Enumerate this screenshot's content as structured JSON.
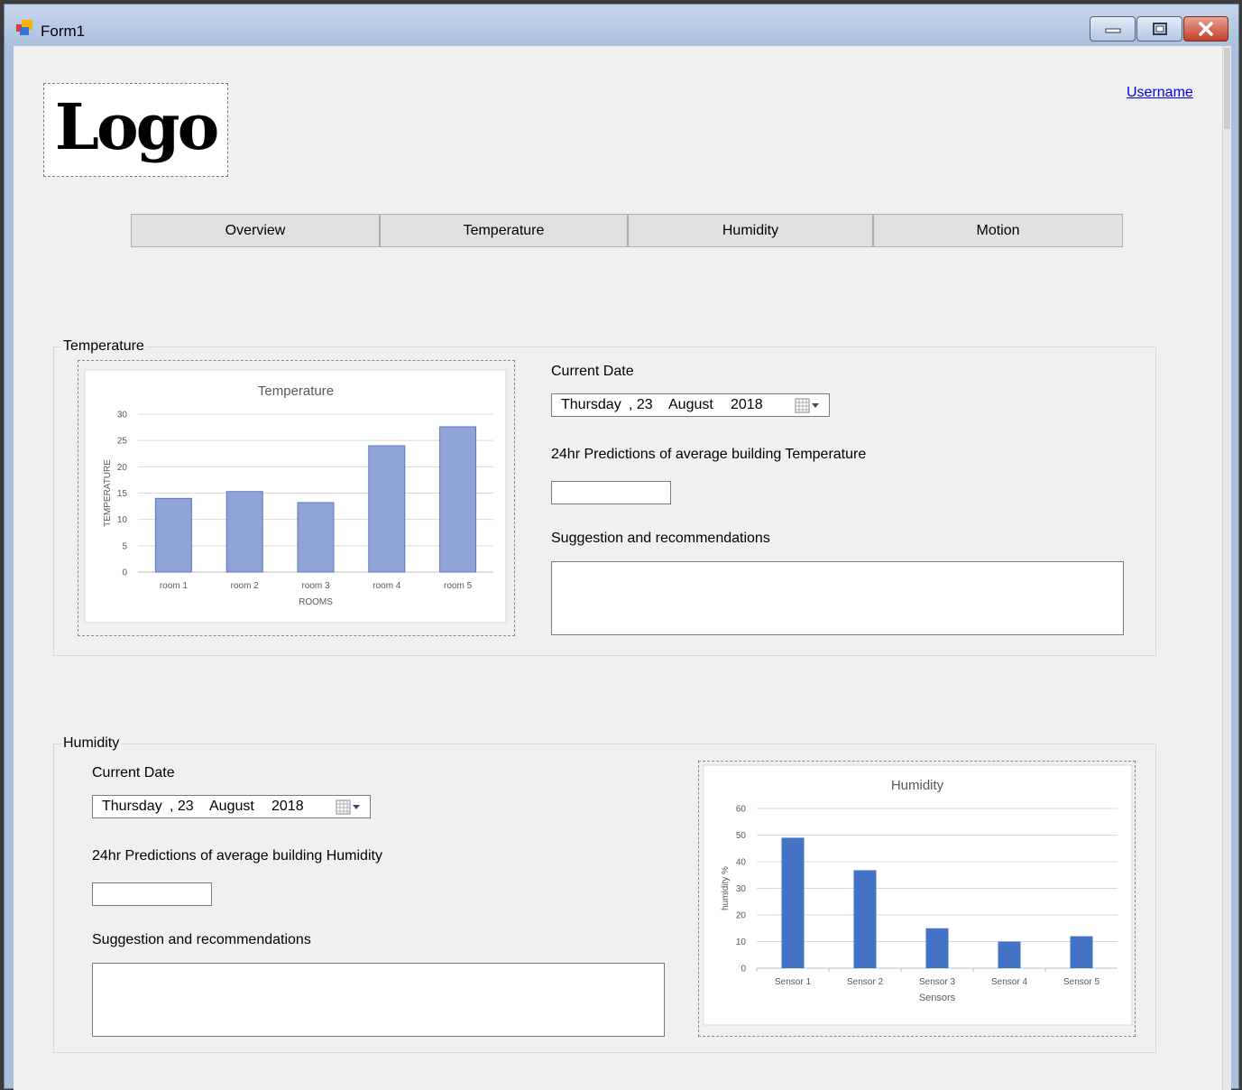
{
  "window": {
    "title": "Form1"
  },
  "header": {
    "logo_text": "Logo",
    "username": "Username"
  },
  "tabs": [
    {
      "label": "Overview"
    },
    {
      "label": "Temperature"
    },
    {
      "label": "Humidity"
    },
    {
      "label": "Motion"
    }
  ],
  "temperature": {
    "group_title": "Temperature",
    "current_date_label": "Current Date",
    "date": {
      "weekday": "Thursday",
      "day": ", 23",
      "month": "August",
      "year": "2018"
    },
    "prediction_label": "24hr Predictions of average building Temperature",
    "prediction_value": "",
    "suggestion_label": "Suggestion and recommendations",
    "suggestion_value": ""
  },
  "humidity": {
    "group_title": "Humidity",
    "current_date_label": "Current Date",
    "date": {
      "weekday": "Thursday",
      "day": ", 23",
      "month": "August",
      "year": "2018"
    },
    "prediction_label": "24hr Predictions of average building Humidity",
    "prediction_value": "",
    "suggestion_label": "Suggestion and recommendations",
    "suggestion_value": ""
  },
  "chart_data": [
    {
      "type": "bar",
      "title": "Temperature",
      "xlabel": "ROOMS",
      "ylabel": "TEMPERATURE",
      "categories": [
        "room 1",
        "room 2",
        "room 3",
        "room 4",
        "room 5"
      ],
      "values": [
        14,
        15.3,
        13.2,
        24,
        27.6
      ],
      "yticks": [
        "0",
        "5",
        "10",
        "15",
        "20",
        "25",
        "30"
      ],
      "ylim": [
        0,
        30
      ],
      "grid": true,
      "bar_color": "#8fa3d6"
    },
    {
      "type": "bar",
      "title": "Humidity",
      "xlabel": "Sensors",
      "ylabel": "humidity %",
      "categories": [
        "Sensor 1",
        "Sensor 2",
        "Sensor 3",
        "Sensor 4",
        "Sensor 5"
      ],
      "values": [
        49,
        36.8,
        15,
        10,
        12
      ],
      "yticks": [
        "0",
        "10",
        "20",
        "30",
        "40",
        "50",
        "60"
      ],
      "ylim": [
        0,
        60
      ],
      "grid": true,
      "bar_color": "#4472c4"
    }
  ]
}
